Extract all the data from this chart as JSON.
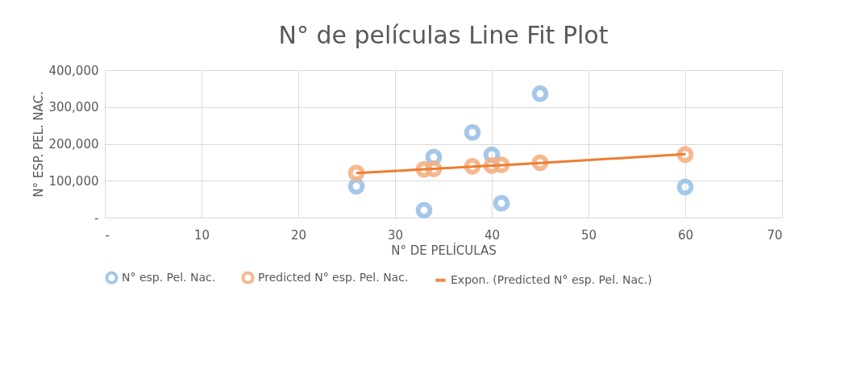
{
  "chart_data": {
    "type": "scatter",
    "title": "N° de películas Line Fit  Plot",
    "xlabel": "N° DE PELÍCULAS",
    "ylabel": "N° ESP. PEL. NAC.",
    "xlim": [
      0,
      70
    ],
    "xticks": [
      {
        "value": 0,
        "label": "-"
      },
      10,
      20,
      30,
      40,
      50,
      60,
      70
    ],
    "ylim": [
      0,
      400000
    ],
    "yticks": [
      {
        "value": 0,
        "label": "-"
      },
      {
        "value": 100000,
        "label": "100,000"
      },
      {
        "value": 200000,
        "label": "200,000"
      },
      {
        "value": 300000,
        "label": "300,000"
      },
      {
        "value": 400000,
        "label": "400,000"
      }
    ],
    "grid": true,
    "legend": "bottom",
    "marker": "circle",
    "series": [
      {
        "name": "N° esp. Pel. Nac.",
        "color": "#9dc3e6",
        "x": [
          26,
          33,
          34,
          38,
          40,
          41,
          45,
          60
        ],
        "values": [
          85000,
          20000,
          164000,
          231000,
          170000,
          39000,
          336000,
          83000
        ]
      },
      {
        "name": "Predicted N° esp. Pel. Nac.",
        "color": "#f4b183",
        "x": [
          26,
          33,
          34,
          38,
          40,
          41,
          45,
          60
        ],
        "values": [
          121000,
          131000,
          132000,
          139000,
          141000,
          143000,
          149000,
          171000
        ]
      },
      {
        "name": "Expon. (Predicted N° esp. Pel. Nac.)",
        "color": "#ed7d31",
        "type": "line",
        "marker": "none",
        "line_style": "solid",
        "x": [
          26,
          33,
          34,
          38,
          40,
          41,
          45,
          60
        ],
        "values": [
          121000,
          131000,
          132000,
          138000,
          141000,
          142000,
          148000,
          172000
        ]
      }
    ]
  }
}
